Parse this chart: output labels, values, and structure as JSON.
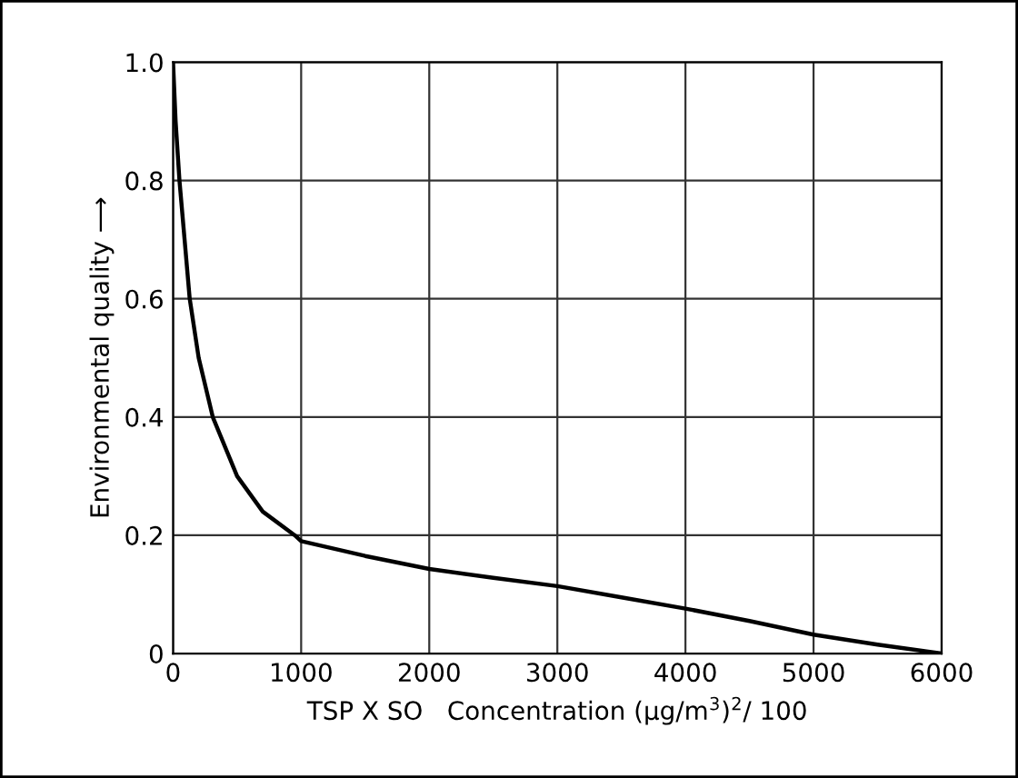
{
  "chart_data": {
    "type": "line",
    "xlabel": "TSP X SO   Concentration (μg/m$^{3}$)$^{2}$/ 100",
    "ylabel": "Environmental quality ⟶",
    "x": [
      0,
      20,
      50,
      90,
      130,
      200,
      310,
      500,
      700,
      950,
      1000,
      1500,
      2000,
      2500,
      3000,
      3500,
      4000,
      4500,
      5000,
      5500,
      6000
    ],
    "series": [
      {
        "color": "#000000",
        "values": [
          1.0,
          0.9,
          0.8,
          0.7,
          0.6,
          0.5,
          0.4,
          0.3,
          0.24,
          0.2,
          0.19,
          0.165,
          0.143,
          0.128,
          0.114,
          0.095,
          0.076,
          0.055,
          0.032,
          0.015,
          0.0
        ]
      }
    ],
    "xlim": [
      0,
      6000
    ],
    "ylim": [
      0,
      1.0
    ],
    "xticks": [
      0,
      1000,
      2000,
      3000,
      4000,
      5000,
      6000
    ],
    "yticks": [
      {
        "value": 0,
        "label": "0"
      },
      {
        "value": 0.2,
        "label": "0.2"
      },
      {
        "value": 0.4,
        "label": "0.4"
      },
      {
        "value": 0.6,
        "label": "0.6"
      },
      {
        "value": 0.8,
        "label": "0.8"
      },
      {
        "value": 1.0,
        "label": "1.0"
      }
    ],
    "grid": true,
    "legend": false,
    "marker": "none",
    "line_style": "solid"
  }
}
